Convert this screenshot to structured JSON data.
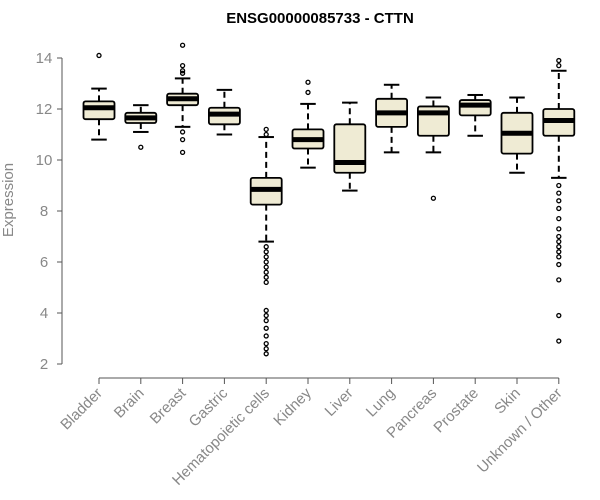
{
  "chart_data": {
    "type": "box",
    "title": "ENSG00000085733 - CTTN",
    "xlabel": "",
    "ylabel": "Expression",
    "ylim": [
      2,
      14
    ],
    "yticks": [
      2,
      4,
      6,
      8,
      10,
      12,
      14
    ],
    "grid": false,
    "box_fill": "#efebd4",
    "box_stroke": "#000000",
    "categories": [
      "Bladder",
      "Brain",
      "Breast",
      "Gastric",
      "Hematopoietic cells",
      "Kidney",
      "Liver",
      "Lung",
      "Pancreas",
      "Prostate",
      "Skin",
      "Unknown / Other"
    ],
    "boxes": [
      {
        "category": "Bladder",
        "whisker_low": 10.8,
        "q1": 11.6,
        "median": 12.05,
        "q3": 12.3,
        "whisker_high": 12.8,
        "outliers": [
          14.1
        ]
      },
      {
        "category": "Brain",
        "whisker_low": 11.1,
        "q1": 11.45,
        "median": 11.65,
        "q3": 11.85,
        "whisker_high": 12.15,
        "outliers": [
          10.5
        ]
      },
      {
        "category": "Breast",
        "whisker_low": 11.3,
        "q1": 12.15,
        "median": 12.4,
        "q3": 12.6,
        "whisker_high": 13.2,
        "outliers": [
          14.5,
          13.7,
          13.5,
          13.4,
          11.1,
          10.8,
          10.3
        ]
      },
      {
        "category": "Gastric",
        "whisker_low": 11.0,
        "q1": 11.4,
        "median": 11.8,
        "q3": 12.05,
        "whisker_high": 12.75,
        "outliers": []
      },
      {
        "category": "Hematopoietic cells",
        "whisker_low": 6.8,
        "q1": 8.25,
        "median": 8.85,
        "q3": 9.3,
        "whisker_high": 10.9,
        "outliers": [
          11.2,
          11.0,
          6.6,
          6.4,
          6.2,
          6.0,
          5.8,
          5.6,
          5.4,
          5.2,
          4.1,
          3.9,
          3.7,
          3.4,
          3.1,
          2.8,
          2.6,
          2.4
        ]
      },
      {
        "category": "Kidney",
        "whisker_low": 9.7,
        "q1": 10.45,
        "median": 10.8,
        "q3": 11.2,
        "whisker_high": 12.2,
        "outliers": [
          13.05,
          12.65
        ]
      },
      {
        "category": "Liver",
        "whisker_low": 8.8,
        "q1": 9.5,
        "median": 9.9,
        "q3": 11.4,
        "whisker_high": 12.25,
        "outliers": []
      },
      {
        "category": "Lung",
        "whisker_low": 10.3,
        "q1": 11.3,
        "median": 11.85,
        "q3": 12.4,
        "whisker_high": 12.95,
        "outliers": []
      },
      {
        "category": "Pancreas",
        "whisker_low": 10.3,
        "q1": 10.95,
        "median": 11.85,
        "q3": 12.1,
        "whisker_high": 12.45,
        "outliers": [
          8.5
        ]
      },
      {
        "category": "Prostate",
        "whisker_low": 10.95,
        "q1": 11.75,
        "median": 12.15,
        "q3": 12.35,
        "whisker_high": 12.55,
        "outliers": []
      },
      {
        "category": "Skin",
        "whisker_low": 9.5,
        "q1": 10.25,
        "median": 11.05,
        "q3": 11.85,
        "whisker_high": 12.45,
        "outliers": []
      },
      {
        "category": "Unknown / Other",
        "whisker_low": 9.3,
        "q1": 10.95,
        "median": 11.55,
        "q3": 12.0,
        "whisker_high": 13.5,
        "outliers": [
          13.9,
          13.7,
          9.0,
          8.7,
          8.4,
          8.1,
          7.7,
          7.3,
          7.0,
          6.8,
          6.6,
          6.4,
          6.2,
          5.9,
          5.3,
          3.9,
          2.9
        ]
      }
    ]
  }
}
